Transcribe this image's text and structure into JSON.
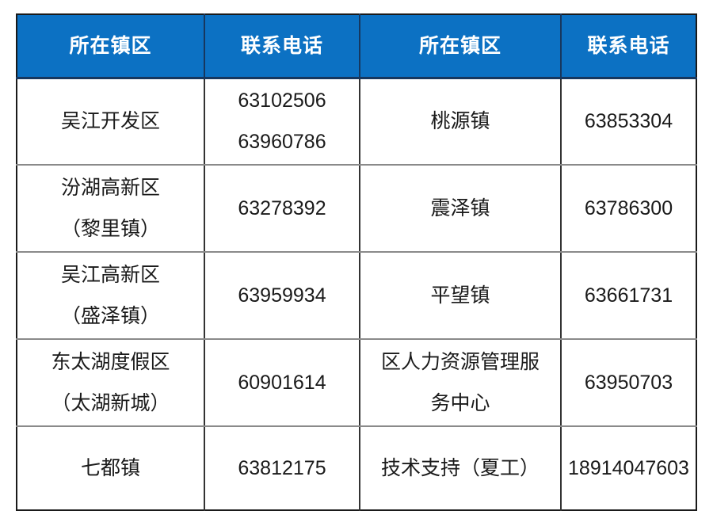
{
  "colors": {
    "header_bg": "#0c71c3",
    "header_text": "#ffffff",
    "header_border": "#17375e",
    "outer_border": "#1a1a1a",
    "vertical_divider": "#333333",
    "horizontal_divider": "#8a8a8a",
    "body_text": "#1a1a1a"
  },
  "table": {
    "header": [
      "所在镇区",
      "联系电话",
      "所在镇区",
      "联系电话"
    ],
    "rows": [
      [
        "吴江开发区",
        "63102506\n63960786",
        "桃源镇",
        "63853304"
      ],
      [
        "汾湖高新区\n（黎里镇）",
        "63278392",
        "震泽镇",
        "63786300"
      ],
      [
        "吴江高新区\n（盛泽镇）",
        "63959934",
        "平望镇",
        "63661731"
      ],
      [
        "东太湖度假区\n（太湖新城）",
        "60901614",
        "区人力资源管理服\n务中心",
        "63950703"
      ],
      [
        "七都镇",
        "63812175",
        "技术支持（夏工）",
        "18914047603"
      ]
    ]
  }
}
